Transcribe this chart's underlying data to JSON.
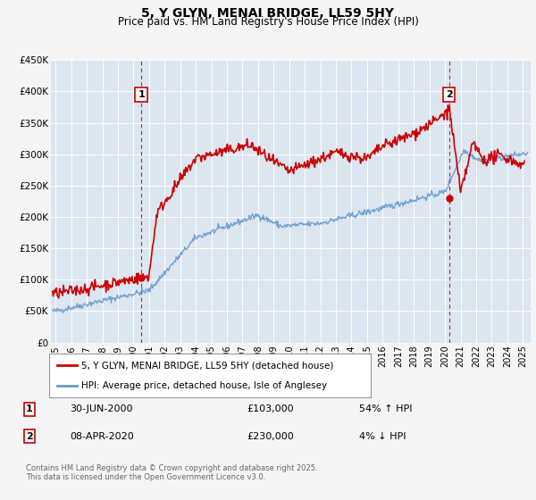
{
  "title": "5, Y GLYN, MENAI BRIDGE, LL59 5HY",
  "subtitle": "Price paid vs. HM Land Registry's House Price Index (HPI)",
  "ylim": [
    0,
    450000
  ],
  "yticks": [
    0,
    50000,
    100000,
    150000,
    200000,
    250000,
    300000,
    350000,
    400000,
    450000
  ],
  "ytick_labels": [
    "£0",
    "£50K",
    "£100K",
    "£150K",
    "£200K",
    "£250K",
    "£300K",
    "£350K",
    "£400K",
    "£450K"
  ],
  "xlim_start": 1994.7,
  "xlim_end": 2025.5,
  "xticks": [
    1995,
    1996,
    1997,
    1998,
    1999,
    2000,
    2001,
    2002,
    2003,
    2004,
    2005,
    2006,
    2007,
    2008,
    2009,
    2010,
    2011,
    2012,
    2013,
    2014,
    2015,
    2016,
    2017,
    2018,
    2019,
    2020,
    2021,
    2022,
    2023,
    2024,
    2025
  ],
  "fig_bg_color": "#f5f5f5",
  "plot_bg_color": "#dce6f0",
  "grid_color": "#ffffff",
  "red_line_color": "#cc0000",
  "blue_line_color": "#6699cc",
  "marker1_date": 2000.5,
  "marker1_value": 103000,
  "marker2_date": 2020.27,
  "marker2_value": 230000,
  "vline_color": "#cc0000",
  "legend_label_red": "5, Y GLYN, MENAI BRIDGE, LL59 5HY (detached house)",
  "legend_label_blue": "HPI: Average price, detached house, Isle of Anglesey",
  "table_row1": [
    "1",
    "30-JUN-2000",
    "£103,000",
    "54% ↑ HPI"
  ],
  "table_row2": [
    "2",
    "08-APR-2020",
    "£230,000",
    "4% ↓ HPI"
  ],
  "footer": "Contains HM Land Registry data © Crown copyright and database right 2025.\nThis data is licensed under the Open Government Licence v3.0.",
  "title_fontsize": 10,
  "subtitle_fontsize": 8.5
}
